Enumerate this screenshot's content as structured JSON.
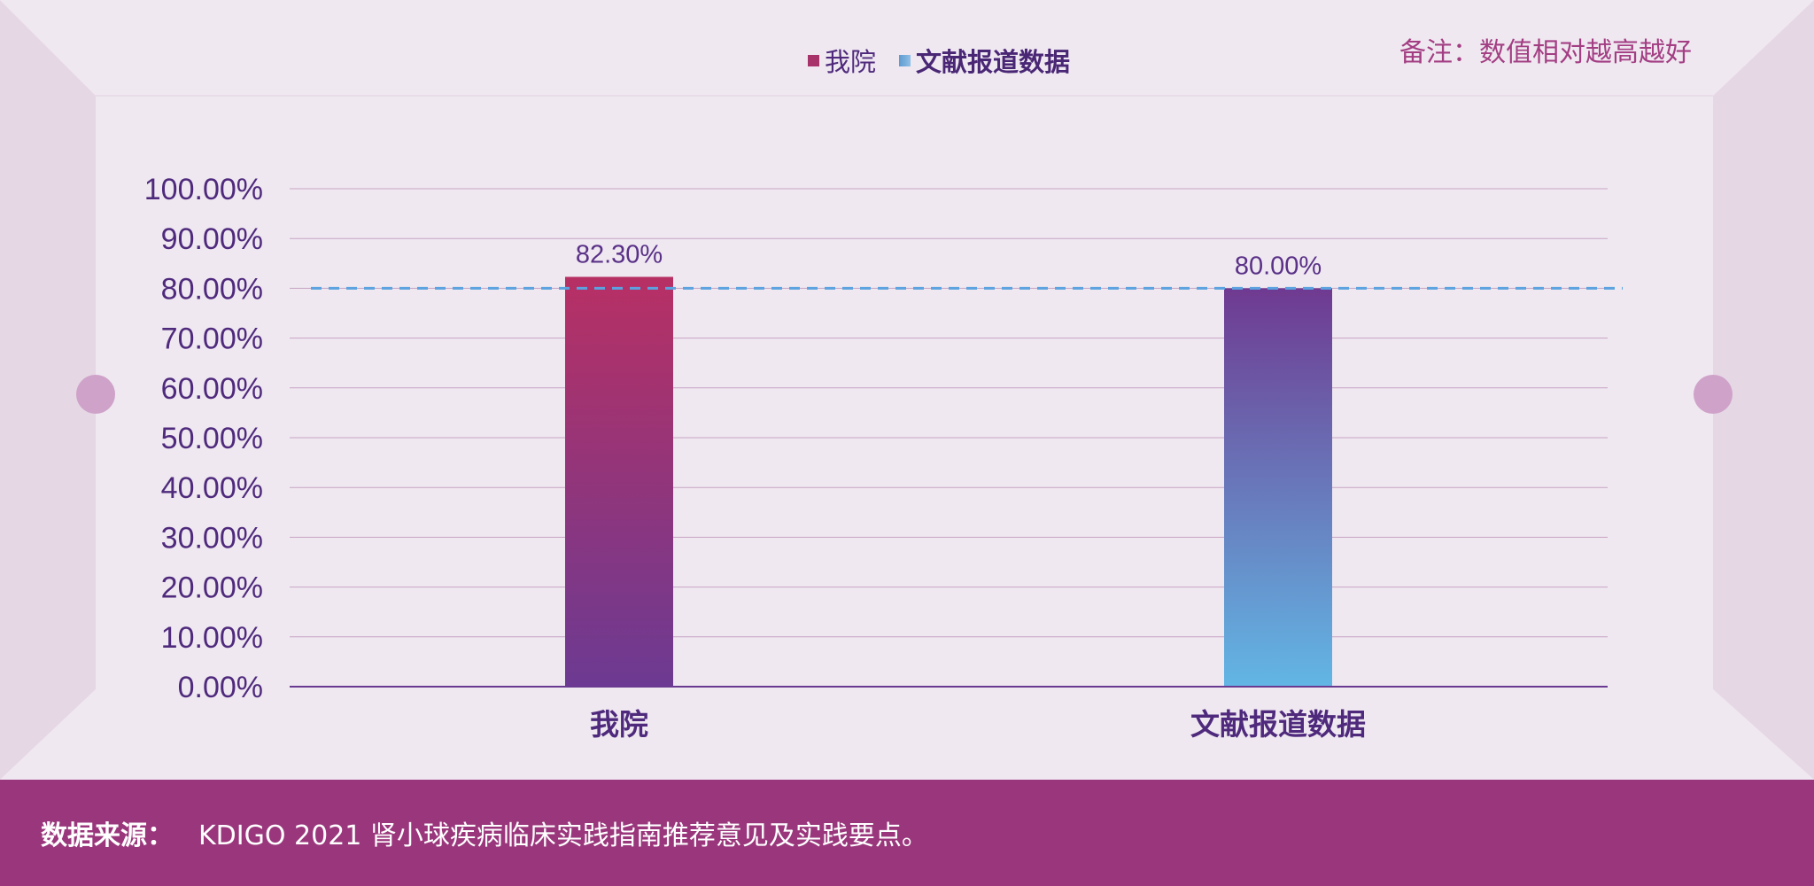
{
  "legend": [
    {
      "label": "我院",
      "color": "#a8336a"
    },
    {
      "label": "文献报道数据",
      "color": "#5e9ad0"
    }
  ],
  "note": "备注：数值相对越高越好",
  "footer": {
    "label": "数据来源：",
    "text": "KDIGO 2021 肾小球疾病临床实践指南推荐意见及实践要点。"
  },
  "chart_data": {
    "type": "bar",
    "categories": [
      "我院",
      "文献报道数据"
    ],
    "values": [
      82.3,
      80.0
    ],
    "value_labels": [
      "82.30%",
      "80.00%"
    ],
    "ylim": [
      0,
      100
    ],
    "yticks": [
      "0.00%",
      "10.00%",
      "20.00%",
      "30.00%",
      "40.00%",
      "50.00%",
      "60.00%",
      "70.00%",
      "80.00%",
      "90.00%",
      "100.00%"
    ],
    "reference_line": 80.0,
    "grid": true,
    "legend_position": "top",
    "bar_colors": [
      {
        "top": "#b73064",
        "bottom": "#6c3a92"
      },
      {
        "top": "#6f3a91",
        "bottom": "#62b6e4"
      }
    ],
    "reference_color": "#5ba3e0"
  }
}
